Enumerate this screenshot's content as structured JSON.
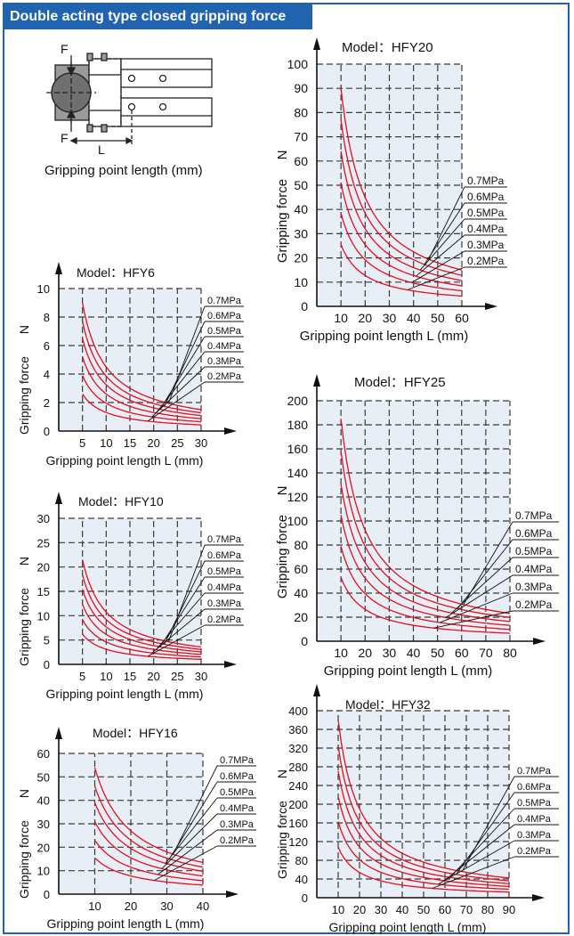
{
  "header": {
    "title": "Double acting type closed gripping force"
  },
  "diagram": {
    "force_label": "F",
    "length_label": "L",
    "caption": "Gripping point length  (mm)"
  },
  "chart_data": [
    {
      "id": "HFY6",
      "type": "line",
      "title": "Model：HFY6",
      "xlabel": "Gripping point length L (mm)",
      "ylabel": "Gripping force",
      "yunit": "N",
      "xlim": [
        0,
        30
      ],
      "ylim": [
        0,
        10
      ],
      "xticks": [
        5,
        10,
        15,
        20,
        25,
        30
      ],
      "yticks": [
        0,
        2,
        4,
        6,
        8,
        10
      ],
      "x_range": [
        5,
        30
      ],
      "series": [
        {
          "name": "0.7MPa",
          "x_start": 5,
          "y_start": 9.0
        },
        {
          "name": "0.6MPa",
          "x_start": 5,
          "y_start": 7.7
        },
        {
          "name": "0.5MPa",
          "x_start": 5,
          "y_start": 6.5
        },
        {
          "name": "0.4MPa",
          "x_start": 5,
          "y_start": 5.2
        },
        {
          "name": "0.3MPa",
          "x_start": 5,
          "y_start": 3.9
        },
        {
          "name": "0.2MPa",
          "x_start": 5,
          "y_start": 2.6
        }
      ]
    },
    {
      "id": "HFY10",
      "type": "line",
      "title": "Model：HFY10",
      "xlabel": "Gripping point length L (mm)",
      "ylabel": "Gripping force",
      "yunit": "N",
      "xlim": [
        0,
        30
      ],
      "ylim": [
        0,
        30
      ],
      "xticks": [
        5,
        10,
        15,
        20,
        25,
        30
      ],
      "yticks": [
        0,
        5,
        10,
        15,
        20,
        25,
        30
      ],
      "x_range": [
        5,
        30
      ],
      "series": [
        {
          "name": "0.7MPa",
          "x_start": 5,
          "y_start": 21.5
        },
        {
          "name": "0.6MPa",
          "x_start": 5,
          "y_start": 18.4
        },
        {
          "name": "0.5MPa",
          "x_start": 5,
          "y_start": 15.4
        },
        {
          "name": "0.4MPa",
          "x_start": 5,
          "y_start": 12.3
        },
        {
          "name": "0.3MPa",
          "x_start": 5,
          "y_start": 9.2
        },
        {
          "name": "0.2MPa",
          "x_start": 5,
          "y_start": 6.2
        }
      ]
    },
    {
      "id": "HFY16",
      "type": "line",
      "title": "Model：HFY16",
      "xlabel": "Gripping point length L (mm)",
      "ylabel": "Gripping force",
      "yunit": "N",
      "xlim": [
        0,
        40
      ],
      "ylim": [
        0,
        60
      ],
      "xticks": [
        10,
        20,
        30,
        40
      ],
      "yticks": [
        0,
        10,
        20,
        30,
        40,
        50,
        60
      ],
      "x_range": [
        10,
        40
      ],
      "series": [
        {
          "name": "0.7MPa",
          "x_start": 10,
          "y_start": 54
        },
        {
          "name": "0.6MPa",
          "x_start": 10,
          "y_start": 46
        },
        {
          "name": "0.5MPa",
          "x_start": 10,
          "y_start": 39
        },
        {
          "name": "0.4MPa",
          "x_start": 10,
          "y_start": 31
        },
        {
          "name": "0.3MPa",
          "x_start": 10,
          "y_start": 23
        },
        {
          "name": "0.2MPa",
          "x_start": 10,
          "y_start": 15.5
        }
      ]
    },
    {
      "id": "HFY20",
      "type": "line",
      "title": "Model：HFY20",
      "xlabel": "Gripping point length L (mm)",
      "ylabel": "Gripping force",
      "yunit": "N",
      "xlim": [
        0,
        60
      ],
      "ylim": [
        0,
        100
      ],
      "xticks": [
        10,
        20,
        30,
        40,
        50,
        60
      ],
      "yticks": [
        0,
        10,
        20,
        30,
        40,
        50,
        60,
        70,
        80,
        90,
        100
      ],
      "x_range": [
        10,
        60
      ],
      "series": [
        {
          "name": "0.7MPa",
          "x_start": 10,
          "y_start": 90
        },
        {
          "name": "0.6MPa",
          "x_start": 10,
          "y_start": 77
        },
        {
          "name": "0.5MPa",
          "x_start": 10,
          "y_start": 64
        },
        {
          "name": "0.4MPa",
          "x_start": 10,
          "y_start": 51
        },
        {
          "name": "0.3MPa",
          "x_start": 10,
          "y_start": 38.5
        },
        {
          "name": "0.2MPa",
          "x_start": 10,
          "y_start": 25.5
        }
      ]
    },
    {
      "id": "HFY25",
      "type": "line",
      "title": "Model：HFY25",
      "xlabel": "Gripping point length L (mm)",
      "ylabel": "Gripping force",
      "yunit": "N",
      "xlim": [
        0,
        80
      ],
      "ylim": [
        0,
        200
      ],
      "xticks": [
        10,
        20,
        30,
        40,
        50,
        60,
        70,
        80
      ],
      "yticks": [
        0,
        20,
        40,
        60,
        80,
        100,
        120,
        140,
        160,
        180,
        200
      ],
      "x_range": [
        10,
        80
      ],
      "series": [
        {
          "name": "0.7MPa",
          "x_start": 10,
          "y_start": 185
        },
        {
          "name": "0.6MPa",
          "x_start": 10,
          "y_start": 158
        },
        {
          "name": "0.5MPa",
          "x_start": 10,
          "y_start": 131
        },
        {
          "name": "0.4MPa",
          "x_start": 10,
          "y_start": 105
        },
        {
          "name": "0.3MPa",
          "x_start": 10,
          "y_start": 79
        },
        {
          "name": "0.2MPa",
          "x_start": 10,
          "y_start": 53
        }
      ]
    },
    {
      "id": "HFY32",
      "type": "line",
      "title": "Model：HFY32",
      "xlabel": "Gripping point length L (mm)",
      "ylabel": "Gripping force",
      "yunit": "N",
      "xlim": [
        0,
        90
      ],
      "ylim": [
        0,
        400
      ],
      "xticks": [
        10,
        20,
        30,
        40,
        50,
        60,
        70,
        80,
        90
      ],
      "yticks": [
        0,
        40,
        80,
        120,
        160,
        200,
        240,
        280,
        320,
        360,
        400
      ],
      "x_range": [
        10,
        90
      ],
      "series": [
        {
          "name": "0.7MPa",
          "x_start": 10,
          "y_start": 380
        },
        {
          "name": "0.6MPa",
          "x_start": 10,
          "y_start": 325
        },
        {
          "name": "0.5MPa",
          "x_start": 10,
          "y_start": 271
        },
        {
          "name": "0.4MPa",
          "x_start": 10,
          "y_start": 217
        },
        {
          "name": "0.3MPa",
          "x_start": 10,
          "y_start": 163
        },
        {
          "name": "0.2MPa",
          "x_start": 10,
          "y_start": 108
        }
      ]
    }
  ],
  "colors": {
    "header_bg": "#1f63b1",
    "curve": "#e3101d",
    "plot_bg": "#e8eef6",
    "grid": "#3a3a3a"
  }
}
